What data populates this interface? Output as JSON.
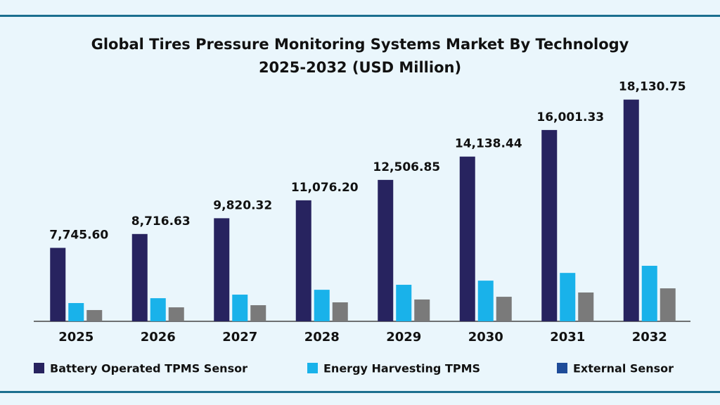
{
  "chart_data": {
    "type": "bar",
    "title": "Global Tires Pressure Monitoring Systems Market By Technology",
    "subtitle": "2025-2032 (USD Million)",
    "categories": [
      "2025",
      "2026",
      "2027",
      "2028",
      "2029",
      "2030",
      "2031",
      "2032"
    ],
    "series": [
      {
        "name": "Battery Operated TPMS Sensor",
        "color": "#27235f",
        "values": [
          7745.6,
          8716.63,
          9820.32,
          11076.2,
          12506.85,
          14138.44,
          16001.33,
          18130.75
        ],
        "value_labels": [
          "7,745.60",
          "8,716.63",
          "9,820.32",
          "11,076.20",
          "12,506.85",
          "14,138.44",
          "16,001.33",
          "18,130.75"
        ]
      },
      {
        "name": "Energy Harvesting TPMS",
        "color": "#19b2ea",
        "values": [
          3880,
          4220,
          4470,
          4810,
          5160,
          5450,
          5990,
          6490
        ]
      },
      {
        "name": "External Sensor",
        "color": "#7a7a7a",
        "legend_color": "#1e4c99",
        "values": [
          3390,
          3580,
          3730,
          3930,
          4130,
          4320,
          4620,
          4910
        ]
      }
    ],
    "ylim": [
      2600,
      19000
    ]
  }
}
